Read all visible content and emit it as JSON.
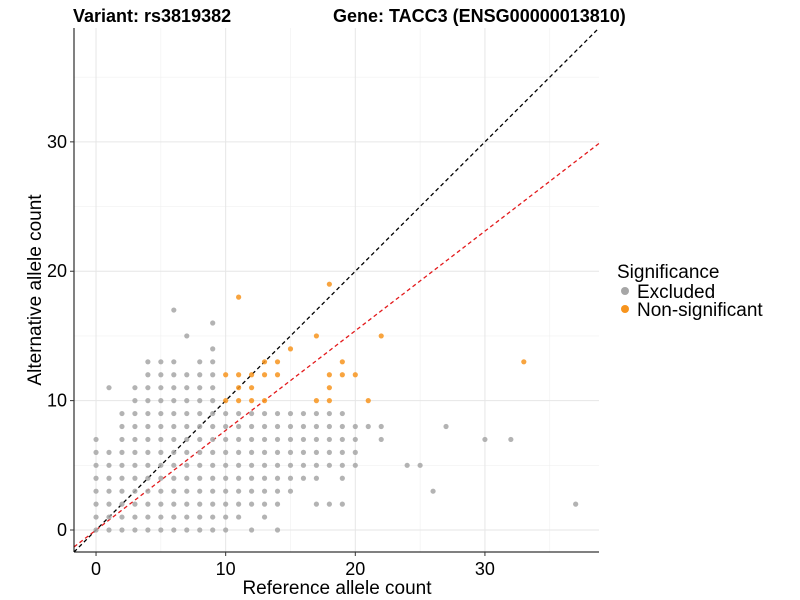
{
  "chart_data": {
    "type": "scatter",
    "title_left": "Variant: rs3819382",
    "title_right": "Gene: TACC3 (ENSG00000013810)",
    "xlabel": "Reference allele count",
    "ylabel": "Alternative allele count",
    "xlim": [
      -1.7,
      38.8
    ],
    "ylim": [
      -1.7,
      38.8
    ],
    "x_ticks": [
      0,
      10,
      20,
      30
    ],
    "y_ticks": [
      0,
      10,
      20,
      30
    ],
    "grid": true,
    "legend": {
      "title": "Significance",
      "placement": "right",
      "entries": [
        {
          "name": "Excluded",
          "color": "#a6a6a6"
        },
        {
          "name": "Non-significant",
          "color": "#f7941d"
        }
      ]
    },
    "reference_lines": [
      {
        "name": "identity",
        "slope": 1,
        "intercept": 0,
        "color": "#000000",
        "style": "dashed"
      },
      {
        "name": "expected",
        "slope": 0.77,
        "intercept": 0,
        "color": "#e31a1c",
        "style": "dashed"
      }
    ],
    "series": [
      {
        "name": "Excluded",
        "color": "#a6a6a6",
        "points": [
          [
            0,
            0
          ],
          [
            0,
            1
          ],
          [
            0,
            2
          ],
          [
            0,
            3
          ],
          [
            0,
            4
          ],
          [
            0,
            5
          ],
          [
            0,
            6
          ],
          [
            0,
            7
          ],
          [
            1,
            0
          ],
          [
            1,
            1
          ],
          [
            1,
            2
          ],
          [
            1,
            3
          ],
          [
            1,
            4
          ],
          [
            1,
            5
          ],
          [
            1,
            6
          ],
          [
            1,
            11
          ],
          [
            2,
            0
          ],
          [
            2,
            1
          ],
          [
            2,
            2
          ],
          [
            2,
            3
          ],
          [
            2,
            4
          ],
          [
            2,
            5
          ],
          [
            2,
            6
          ],
          [
            2,
            7
          ],
          [
            2,
            8
          ],
          [
            2,
            9
          ],
          [
            3,
            0
          ],
          [
            3,
            1
          ],
          [
            3,
            2
          ],
          [
            3,
            3
          ],
          [
            3,
            4
          ],
          [
            3,
            5
          ],
          [
            3,
            6
          ],
          [
            3,
            7
          ],
          [
            3,
            8
          ],
          [
            3,
            9
          ],
          [
            3,
            10
          ],
          [
            3,
            11
          ],
          [
            4,
            0
          ],
          [
            4,
            1
          ],
          [
            4,
            2
          ],
          [
            4,
            3
          ],
          [
            4,
            4
          ],
          [
            4,
            5
          ],
          [
            4,
            6
          ],
          [
            4,
            7
          ],
          [
            4,
            8
          ],
          [
            4,
            9
          ],
          [
            4,
            10
          ],
          [
            4,
            11
          ],
          [
            4,
            12
          ],
          [
            4,
            13
          ],
          [
            5,
            0
          ],
          [
            5,
            1
          ],
          [
            5,
            2
          ],
          [
            5,
            3
          ],
          [
            5,
            4
          ],
          [
            5,
            5
          ],
          [
            5,
            6
          ],
          [
            5,
            7
          ],
          [
            5,
            8
          ],
          [
            5,
            9
          ],
          [
            5,
            10
          ],
          [
            5,
            11
          ],
          [
            5,
            12
          ],
          [
            5,
            13
          ],
          [
            6,
            0
          ],
          [
            6,
            1
          ],
          [
            6,
            2
          ],
          [
            6,
            3
          ],
          [
            6,
            4
          ],
          [
            6,
            5
          ],
          [
            6,
            6
          ],
          [
            6,
            7
          ],
          [
            6,
            8
          ],
          [
            6,
            9
          ],
          [
            6,
            10
          ],
          [
            6,
            11
          ],
          [
            6,
            12
          ],
          [
            6,
            13
          ],
          [
            6,
            17
          ],
          [
            7,
            0
          ],
          [
            7,
            1
          ],
          [
            7,
            2
          ],
          [
            7,
            3
          ],
          [
            7,
            4
          ],
          [
            7,
            5
          ],
          [
            7,
            6
          ],
          [
            7,
            7
          ],
          [
            7,
            8
          ],
          [
            7,
            9
          ],
          [
            7,
            10
          ],
          [
            7,
            11
          ],
          [
            7,
            12
          ],
          [
            7,
            15
          ],
          [
            8,
            0
          ],
          [
            8,
            1
          ],
          [
            8,
            2
          ],
          [
            8,
            3
          ],
          [
            8,
            4
          ],
          [
            8,
            5
          ],
          [
            8,
            6
          ],
          [
            8,
            7
          ],
          [
            8,
            8
          ],
          [
            8,
            9
          ],
          [
            8,
            10
          ],
          [
            8,
            11
          ],
          [
            8,
            12
          ],
          [
            8,
            13
          ],
          [
            9,
            0
          ],
          [
            9,
            1
          ],
          [
            9,
            2
          ],
          [
            9,
            3
          ],
          [
            9,
            4
          ],
          [
            9,
            5
          ],
          [
            9,
            6
          ],
          [
            9,
            7
          ],
          [
            9,
            8
          ],
          [
            9,
            9
          ],
          [
            9,
            10
          ],
          [
            9,
            11
          ],
          [
            9,
            12
          ],
          [
            9,
            13
          ],
          [
            9,
            14
          ],
          [
            9,
            16
          ],
          [
            10,
            0
          ],
          [
            10,
            1
          ],
          [
            10,
            2
          ],
          [
            10,
            3
          ],
          [
            10,
            4
          ],
          [
            10,
            5
          ],
          [
            10,
            6
          ],
          [
            10,
            7
          ],
          [
            10,
            8
          ],
          [
            10,
            9
          ],
          [
            11,
            1
          ],
          [
            11,
            2
          ],
          [
            11,
            3
          ],
          [
            11,
            4
          ],
          [
            11,
            5
          ],
          [
            11,
            6
          ],
          [
            11,
            7
          ],
          [
            11,
            8
          ],
          [
            11,
            9
          ],
          [
            12,
            0
          ],
          [
            12,
            2
          ],
          [
            12,
            3
          ],
          [
            12,
            4
          ],
          [
            12,
            5
          ],
          [
            12,
            6
          ],
          [
            12,
            7
          ],
          [
            12,
            8
          ],
          [
            12,
            9
          ],
          [
            13,
            1
          ],
          [
            13,
            2
          ],
          [
            13,
            3
          ],
          [
            13,
            4
          ],
          [
            13,
            5
          ],
          [
            13,
            6
          ],
          [
            13,
            7
          ],
          [
            13,
            8
          ],
          [
            13,
            9
          ],
          [
            14,
            0
          ],
          [
            14,
            2
          ],
          [
            14,
            3
          ],
          [
            14,
            4
          ],
          [
            14,
            5
          ],
          [
            14,
            6
          ],
          [
            14,
            7
          ],
          [
            14,
            8
          ],
          [
            14,
            9
          ],
          [
            15,
            3
          ],
          [
            15,
            4
          ],
          [
            15,
            5
          ],
          [
            15,
            6
          ],
          [
            15,
            7
          ],
          [
            15,
            8
          ],
          [
            15,
            9
          ],
          [
            16,
            4
          ],
          [
            16,
            5
          ],
          [
            16,
            6
          ],
          [
            16,
            7
          ],
          [
            16,
            8
          ],
          [
            16,
            9
          ],
          [
            17,
            2
          ],
          [
            17,
            4
          ],
          [
            17,
            5
          ],
          [
            17,
            6
          ],
          [
            17,
            7
          ],
          [
            17,
            8
          ],
          [
            17,
            9
          ],
          [
            18,
            2
          ],
          [
            18,
            5
          ],
          [
            18,
            6
          ],
          [
            18,
            7
          ],
          [
            18,
            8
          ],
          [
            18,
            9
          ],
          [
            19,
            2
          ],
          [
            19,
            4
          ],
          [
            19,
            5
          ],
          [
            19,
            6
          ],
          [
            19,
            7
          ],
          [
            19,
            8
          ],
          [
            19,
            9
          ],
          [
            20,
            5
          ],
          [
            20,
            6
          ],
          [
            20,
            7
          ],
          [
            20,
            8
          ],
          [
            21,
            8
          ],
          [
            22,
            7
          ],
          [
            22,
            8
          ],
          [
            24,
            5
          ],
          [
            25,
            5
          ],
          [
            26,
            3
          ],
          [
            27,
            8
          ],
          [
            30,
            7
          ],
          [
            32,
            7
          ],
          [
            37,
            2
          ]
        ]
      },
      {
        "name": "Non-significant",
        "color": "#f7941d",
        "points": [
          [
            10,
            10
          ],
          [
            10,
            12
          ],
          [
            11,
            10
          ],
          [
            11,
            11
          ],
          [
            11,
            12
          ],
          [
            11,
            18
          ],
          [
            12,
            10
          ],
          [
            12,
            11
          ],
          [
            12,
            12
          ],
          [
            13,
            10
          ],
          [
            13,
            12
          ],
          [
            13,
            13
          ],
          [
            14,
            12
          ],
          [
            14,
            13
          ],
          [
            15,
            14
          ],
          [
            17,
            10
          ],
          [
            17,
            15
          ],
          [
            18,
            10
          ],
          [
            18,
            11
          ],
          [
            18,
            12
          ],
          [
            18,
            19
          ],
          [
            19,
            12
          ],
          [
            19,
            13
          ],
          [
            20,
            12
          ],
          [
            21,
            10
          ],
          [
            22,
            15
          ],
          [
            33,
            13
          ]
        ]
      }
    ]
  }
}
